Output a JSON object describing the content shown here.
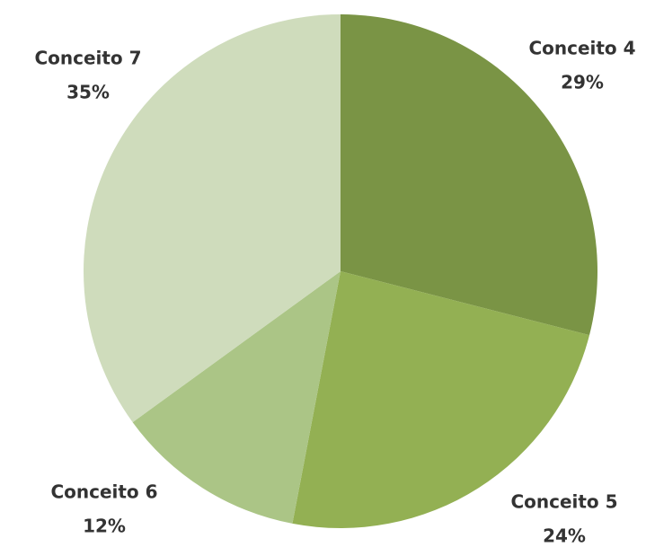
{
  "chart_data": {
    "type": "pie",
    "categories": [
      "Conceito 4",
      "Conceito 5",
      "Conceito 6",
      "Conceito 7"
    ],
    "values": [
      29,
      24,
      12,
      35
    ],
    "value_labels": [
      "29%",
      "24%",
      "12%",
      "35%"
    ],
    "colors": [
      "#7a9445",
      "#93b053",
      "#abc586",
      "#cfdcbc"
    ]
  }
}
